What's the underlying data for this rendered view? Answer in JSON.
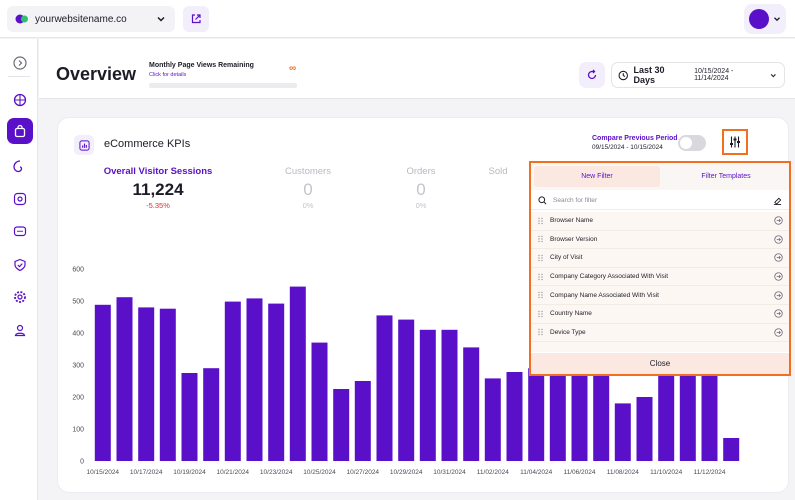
{
  "topbar": {
    "site_name": "yourwebsitename.co"
  },
  "header": {
    "title": "Overview",
    "page_views_title": "Monthly Page Views Remaining",
    "page_views_link": "Click for details",
    "page_views_value": "∞",
    "date_label": "Last 30 Days",
    "date_range": "10/15/2024 - 11/14/2024"
  },
  "card": {
    "title": "eCommerce KPIs",
    "compare_label": "Compare Previous Period",
    "compare_dates": "09/15/2024 - 10/15/2024",
    "compare_enabled": false
  },
  "metrics": [
    {
      "label": "Overall Visitor Sessions",
      "value": "11,224",
      "delta": "-5.35%"
    },
    {
      "label": "Customers",
      "value": "0",
      "delta": "0%"
    },
    {
      "label": "Orders",
      "value": "0",
      "delta": "0%"
    },
    {
      "label": "Sold",
      "value": "",
      "delta": ""
    }
  ],
  "chart_data": {
    "type": "bar",
    "ylim": [
      0,
      600
    ],
    "yticks": [
      "0",
      "100",
      "200",
      "300",
      "400",
      "500",
      "600"
    ],
    "categories": [
      "10/15/2024",
      "10/16/2024",
      "10/17/2024",
      "10/18/2024",
      "10/19/2024",
      "10/20/2024",
      "10/21/2024",
      "10/22/2024",
      "10/23/2024",
      "10/24/2024",
      "10/25/2024",
      "10/26/2024",
      "10/27/2024",
      "10/28/2024",
      "10/29/2024",
      "10/30/2024",
      "10/31/2024",
      "11/01/2024",
      "11/02/2024",
      "11/03/2024",
      "11/04/2024",
      "11/05/2024",
      "11/06/2024",
      "11/07/2024",
      "11/08/2024",
      "11/09/2024",
      "11/10/2024",
      "11/11/2024",
      "11/12/2024",
      "11/13/2024"
    ],
    "xtick_labels": [
      "10/15/2024",
      "10/17/2024",
      "10/19/2024",
      "10/21/2024",
      "10/23/2024",
      "10/25/2024",
      "10/27/2024",
      "10/29/2024",
      "10/31/2024",
      "11/02/2024",
      "11/04/2024",
      "11/06/2024",
      "11/08/2024",
      "11/10/2024",
      "11/12/2024"
    ],
    "values": [
      488,
      512,
      480,
      476,
      275,
      290,
      498,
      508,
      492,
      545,
      370,
      225,
      250,
      455,
      442,
      410,
      410,
      355,
      258,
      278,
      290,
      305,
      300,
      300,
      180,
      200,
      290,
      290,
      290,
      72
    ],
    "bar_color": "#5a10c8",
    "grid": false
  },
  "filter_panel": {
    "tabs": [
      "New Filter",
      "Filter Templates"
    ],
    "search_placeholder": "Search for filter",
    "items": [
      "Browser Name",
      "Browser Version",
      "City of Visit",
      "Company Category Associated With Visit",
      "Company Name Associated With Visit",
      "Country Name",
      "Device Type"
    ],
    "close_label": "Close"
  },
  "colors": {
    "accent": "#5a10c8",
    "highlight": "#f07020",
    "negative": "#e03030"
  }
}
